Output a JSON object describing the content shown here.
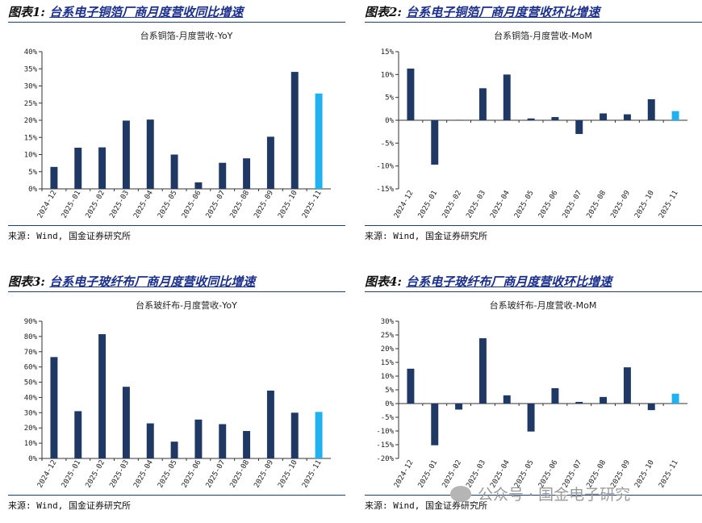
{
  "panels": [
    {
      "title_lead": "图表1:",
      "title_sub": "台系电子铜箔厂商月度营收同比增速",
      "source": "来源: Wind, 国金证券研究所",
      "chart_data": {
        "type": "bar",
        "title": "台系铜箔-月度营收-YoY",
        "categories": [
          "2024-12",
          "2025-01",
          "2025-02",
          "2025-03",
          "2025-04",
          "2025-05",
          "2025-06",
          "2025-07",
          "2025-08",
          "2025-09",
          "2025-10",
          "2025-11"
        ],
        "values": [
          6.4,
          12.0,
          12.1,
          19.9,
          20.2,
          10.0,
          1.9,
          7.6,
          8.9,
          15.2,
          34.1,
          27.8
        ],
        "ylim": [
          0,
          40
        ],
        "yticks": [
          0,
          5,
          10,
          15,
          20,
          25,
          30,
          35,
          40
        ],
        "yticklabels": [
          "0%",
          "5%",
          "10%",
          "15%",
          "20%",
          "25%",
          "30%",
          "35%",
          "40%"
        ],
        "xlabel": "",
        "ylabel": "",
        "bar_color": "#1f3864",
        "highlight_color": "#1fb1f0",
        "highlight_index": 11,
        "grid": false
      }
    },
    {
      "title_lead": "图表2:",
      "title_sub": "台系电子铜箔厂商月度营收环比增速",
      "source": "来源: Wind, 国金证券研究所",
      "chart_data": {
        "type": "bar",
        "title": "台系铜箔-月度营收-MoM",
        "categories": [
          "2024-12",
          "2025-01",
          "2025-02",
          "2025-03",
          "2025-04",
          "2025-05",
          "2025-06",
          "2025-07",
          "2025-08",
          "2025-09",
          "2025-10",
          "2025-11"
        ],
        "values": [
          11.3,
          -9.7,
          0.1,
          7.0,
          10.0,
          0.4,
          0.7,
          -3.0,
          1.5,
          1.3,
          4.6,
          2.0
        ],
        "ylim": [
          -15,
          15
        ],
        "yticks": [
          -15,
          -10,
          -5,
          0,
          5,
          10,
          15
        ],
        "yticklabels": [
          "-15%",
          "-10%",
          "-5%",
          "0%",
          "5%",
          "10%",
          "15%"
        ],
        "xlabel": "",
        "ylabel": "",
        "bar_color": "#1f3864",
        "highlight_color": "#1fb1f0",
        "highlight_index": 11,
        "grid": false
      }
    },
    {
      "title_lead": "图表3:",
      "title_sub": "台系电子玻纤布厂商月度营收同比增速",
      "source": "来源: Wind, 国金证券研究所",
      "chart_data": {
        "type": "bar",
        "title": "台系玻纤布-月度营收-YoY",
        "categories": [
          "2024-12",
          "2025-01",
          "2025-02",
          "2025-03",
          "2025-04",
          "2025-05",
          "2025-06",
          "2025-07",
          "2025-08",
          "2025-09",
          "2025-10",
          "2025-11"
        ],
        "values": [
          66.5,
          31.0,
          81.5,
          47.0,
          23.0,
          11.0,
          25.5,
          22.5,
          18.0,
          44.5,
          30.0,
          30.5
        ],
        "ylim": [
          0,
          90
        ],
        "yticks": [
          0,
          10,
          20,
          30,
          40,
          50,
          60,
          70,
          80,
          90
        ],
        "yticklabels": [
          "0%",
          "10%",
          "20%",
          "30%",
          "40%",
          "50%",
          "60%",
          "70%",
          "80%",
          "90%"
        ],
        "xlabel": "",
        "ylabel": "",
        "bar_color": "#1f3864",
        "highlight_color": "#1fb1f0",
        "highlight_index": 11,
        "grid": false
      }
    },
    {
      "title_lead": "图表4:",
      "title_sub": "台系电子玻纤布厂商月度营收环比增速",
      "source": "来源: Wind, 国金证券研究所",
      "chart_data": {
        "type": "bar",
        "title": "台系玻纤布-月度营收-MoM",
        "categories": [
          "2024-12",
          "2025-01",
          "2025-02",
          "2025-03",
          "2025-04",
          "2025-05",
          "2025-06",
          "2025-07",
          "2025-08",
          "2025-09",
          "2025-10",
          "2025-11"
        ],
        "values": [
          12.7,
          -15.2,
          -2.2,
          23.8,
          3.0,
          -10.2,
          5.6,
          0.6,
          2.4,
          13.2,
          -2.4,
          3.6
        ],
        "ylim": [
          -20,
          30
        ],
        "yticks": [
          -20,
          -15,
          -10,
          -5,
          0,
          5,
          10,
          15,
          20,
          25,
          30
        ],
        "yticklabels": [
          "-20%",
          "-15%",
          "-10%",
          "-5%",
          "0%",
          "5%",
          "10%",
          "15%",
          "20%",
          "25%",
          "30%"
        ],
        "xlabel": "",
        "ylabel": "",
        "bar_color": "#1f3864",
        "highlight_color": "#1fb1f0",
        "highlight_index": 11,
        "grid": false
      }
    }
  ],
  "watermark": "公众号 · 国金电子研究"
}
